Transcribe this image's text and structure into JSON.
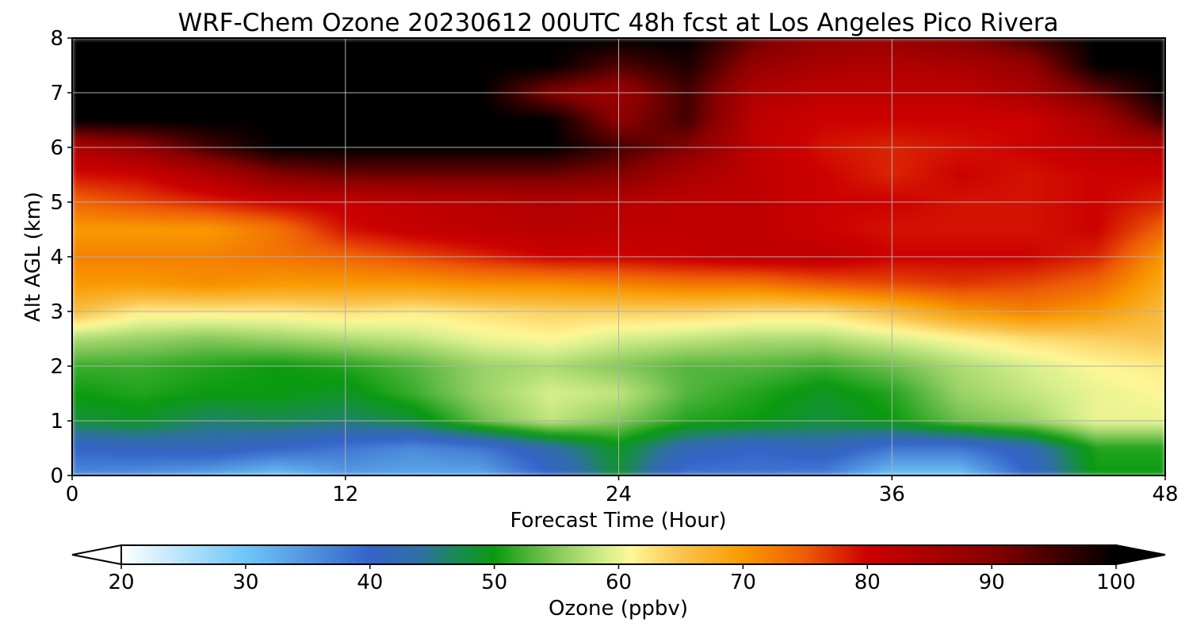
{
  "chart_data": {
    "type": "heatmap",
    "title": "WRF-Chem Ozone  20230612 00UTC 48h fcst at Los Angeles Pico Rivera",
    "xlabel": "Forecast Time (Hour)",
    "ylabel": "Alt AGL (km)",
    "xlim": [
      0,
      48
    ],
    "ylim": [
      0,
      8
    ],
    "x_ticks": [
      0,
      12,
      24,
      36,
      48
    ],
    "y_ticks": [
      0,
      1,
      2,
      3,
      4,
      5,
      6,
      7,
      8
    ],
    "grid": true,
    "x": [
      0,
      3,
      6,
      9,
      12,
      15,
      18,
      21,
      24,
      27,
      30,
      33,
      36,
      39,
      42,
      45,
      48
    ],
    "y": [
      0,
      0.5,
      1,
      1.5,
      2,
      2.5,
      3,
      3.5,
      4,
      4.5,
      5,
      5.5,
      6,
      6.5,
      7,
      7.5,
      8
    ],
    "z": [
      [
        36,
        35,
        33,
        30,
        34,
        33,
        33,
        40,
        48,
        38,
        38,
        37,
        30,
        30,
        40,
        50,
        50
      ],
      [
        40,
        41,
        42,
        40,
        38,
        36,
        38,
        43,
        49,
        42,
        40,
        42,
        38,
        38,
        42,
        51,
        51
      ],
      [
        48,
        49,
        46,
        47,
        46,
        48,
        54,
        58,
        55,
        51,
        50,
        48,
        50,
        54,
        56,
        60,
        60
      ],
      [
        50,
        51,
        50,
        50,
        49,
        52,
        56,
        59,
        58,
        53,
        51,
        49,
        51,
        56,
        58,
        60,
        61
      ],
      [
        52,
        52,
        51,
        50,
        51,
        53,
        56,
        57,
        55,
        53,
        53,
        52,
        54,
        57,
        59,
        61,
        62
      ],
      [
        57,
        56,
        55,
        56,
        57,
        58,
        60,
        61,
        59,
        58,
        57,
        57,
        59,
        61,
        63,
        64,
        65
      ],
      [
        66,
        62,
        62,
        62,
        63,
        62,
        63,
        64,
        64,
        64,
        63,
        63,
        66,
        70,
        72,
        70,
        66
      ],
      [
        70,
        70,
        71,
        70,
        70,
        70,
        71,
        71,
        72,
        73,
        73,
        75,
        76,
        77,
        76,
        74,
        68
      ],
      [
        72,
        72,
        72,
        73,
        74,
        76,
        78,
        80,
        80,
        81,
        82,
        82,
        80,
        80,
        80,
        78,
        70
      ],
      [
        70,
        70,
        70,
        73,
        79,
        81,
        82,
        83,
        82,
        82,
        82,
        80,
        79,
        79,
        79,
        80,
        74
      ],
      [
        74,
        76,
        78,
        80,
        81,
        82,
        83,
        84,
        83,
        82,
        82,
        80,
        80,
        79,
        79,
        80,
        78
      ],
      [
        79,
        80,
        84,
        90,
        92,
        92,
        92,
        92,
        90,
        85,
        82,
        80,
        78,
        80,
        79,
        80,
        80
      ],
      [
        84,
        88,
        95,
        100,
        100,
        100,
        100,
        100,
        95,
        90,
        82,
        79,
        78,
        79,
        80,
        82,
        84
      ],
      [
        100,
        100,
        100,
        100,
        100,
        100,
        100,
        100,
        89,
        95,
        82,
        80,
        80,
        80,
        80,
        85,
        96
      ],
      [
        100,
        100,
        100,
        100,
        100,
        100,
        100,
        90,
        87,
        95,
        84,
        82,
        82,
        82,
        85,
        92,
        100
      ],
      [
        100,
        100,
        100,
        100,
        100,
        100,
        100,
        100,
        94,
        98,
        88,
        85,
        84,
        85,
        88,
        100,
        100
      ],
      [
        100,
        100,
        100,
        100,
        100,
        100,
        100,
        100,
        100,
        100,
        92,
        88,
        88,
        90,
        95,
        100,
        100
      ]
    ],
    "colorbar": {
      "label": "Ozone  (ppbv)",
      "min": 20,
      "max": 100,
      "ticks": [
        20,
        30,
        40,
        50,
        60,
        70,
        80,
        90,
        100
      ],
      "extend": "both",
      "stops": [
        [
          20,
          "#ffffff"
        ],
        [
          30,
          "#6ec6f6"
        ],
        [
          40,
          "#3563c9"
        ],
        [
          44,
          "#2f6fa4"
        ],
        [
          47,
          "#1a8a52"
        ],
        [
          50,
          "#0a9a10"
        ],
        [
          55,
          "#86c95a"
        ],
        [
          59,
          "#d6ef8c"
        ],
        [
          61,
          "#fff797"
        ],
        [
          65,
          "#f9c44f"
        ],
        [
          70,
          "#f99a00"
        ],
        [
          75,
          "#ee5b06"
        ],
        [
          80,
          "#cc0000"
        ],
        [
          90,
          "#880000"
        ],
        [
          100,
          "#000000"
        ]
      ]
    }
  }
}
